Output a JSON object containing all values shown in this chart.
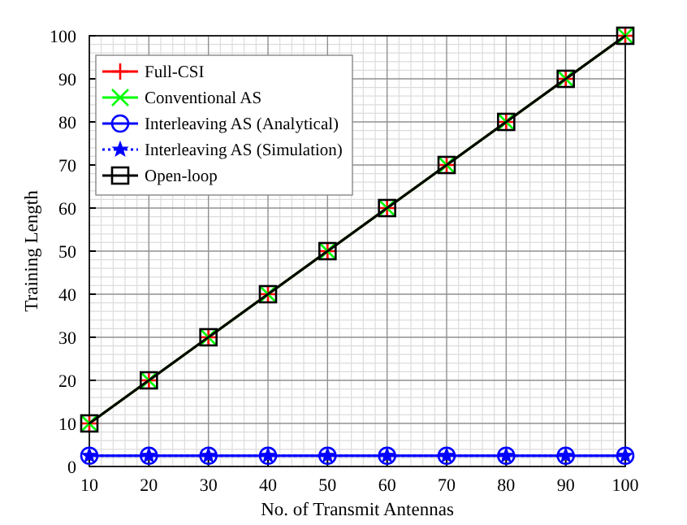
{
  "chart_data": {
    "type": "line",
    "xlabel": "No. of Transmit Antennas",
    "ylabel": "Training Length",
    "x": [
      10,
      20,
      30,
      40,
      50,
      60,
      70,
      80,
      90,
      100
    ],
    "series": [
      {
        "name": "Full-CSI",
        "color": "#ff0000",
        "marker": "cross",
        "line_style": "solid",
        "values": [
          10,
          20,
          30,
          40,
          50,
          60,
          70,
          80,
          90,
          100
        ]
      },
      {
        "name": "Conventional AS",
        "color": "#00ff00",
        "marker": "x",
        "line_style": "solid",
        "values": [
          10,
          20,
          30,
          40,
          50,
          60,
          70,
          80,
          90,
          100
        ]
      },
      {
        "name": "Interleaving AS (Analytical)",
        "color": "#0000ff",
        "marker": "circle",
        "line_style": "solid",
        "values": [
          2.5,
          2.5,
          2.5,
          2.5,
          2.5,
          2.5,
          2.5,
          2.5,
          2.5,
          2.5
        ]
      },
      {
        "name": "Interleaving AS (Simulation)",
        "color": "#0000ff",
        "marker": "star",
        "line_style": "dotted",
        "values": [
          2.5,
          2.5,
          2.5,
          2.5,
          2.5,
          2.5,
          2.5,
          2.5,
          2.5,
          2.5
        ]
      },
      {
        "name": "Open-loop",
        "color": "#000000",
        "marker": "square",
        "line_style": "solid",
        "values": [
          10,
          20,
          30,
          40,
          50,
          60,
          70,
          80,
          90,
          100
        ]
      }
    ],
    "xlim": [
      10,
      100
    ],
    "xticks": [
      10,
      20,
      30,
      40,
      50,
      60,
      70,
      80,
      90,
      100
    ],
    "ylim": [
      0,
      100
    ],
    "yticks": [
      0,
      10,
      20,
      30,
      40,
      50,
      60,
      70,
      80,
      90,
      100
    ],
    "grid": true,
    "legend": "top left"
  }
}
